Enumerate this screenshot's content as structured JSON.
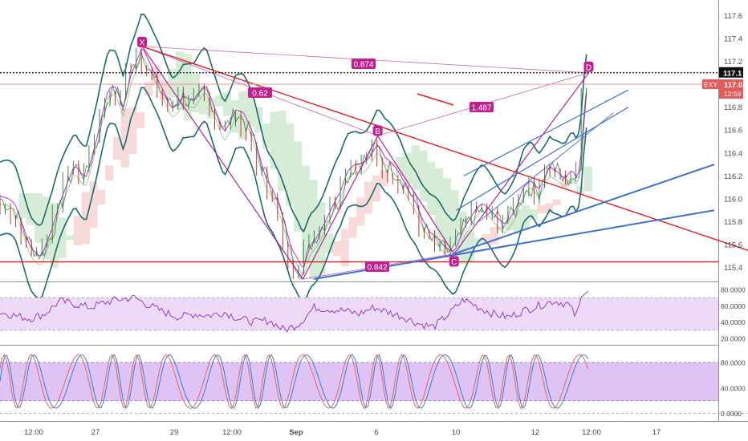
{
  "chart_data": [
    {
      "type": "line",
      "panel": "price",
      "symbol": "EXY",
      "last_price": "117.0",
      "countdown": "12:59",
      "marker_price": "117.1",
      "y_ticks": [
        115.4,
        115.6,
        115.8,
        116.0,
        116.2,
        116.4,
        116.6,
        116.8,
        117.0,
        117.2,
        117.4,
        117.6
      ],
      "ylim": [
        115.3,
        117.7
      ],
      "x_ticks": [
        "12:00",
        "27",
        "29",
        "12:00",
        "Sep",
        "6",
        "10",
        "12",
        "12:00",
        "17"
      ],
      "harmonic_points": [
        {
          "label": "X",
          "t": 0.19,
          "price": 117.33
        },
        {
          "label": "B",
          "t": 0.505,
          "price": 116.55
        },
        {
          "label": "C",
          "t": 0.607,
          "price": 115.52
        },
        {
          "label": "D",
          "t": 0.787,
          "price": 117.1
        }
      ],
      "unlabeled_points": [
        {
          "t": 0.405,
          "price": 115.3
        }
      ],
      "ratios": [
        "0.874",
        "0.62",
        "1.487",
        "0.842"
      ],
      "support_level": 115.45,
      "price_series": [
        [
          0.0,
          116.0
        ],
        [
          0.02,
          115.9
        ],
        [
          0.04,
          115.6
        ],
        [
          0.055,
          115.5
        ],
        [
          0.07,
          115.7
        ],
        [
          0.085,
          116.0
        ],
        [
          0.1,
          116.3
        ],
        [
          0.115,
          116.2
        ],
        [
          0.13,
          116.5
        ],
        [
          0.145,
          116.9
        ],
        [
          0.155,
          116.95
        ],
        [
          0.165,
          116.8
        ],
        [
          0.175,
          117.1
        ],
        [
          0.19,
          117.3
        ],
        [
          0.205,
          117.05
        ],
        [
          0.215,
          116.95
        ],
        [
          0.23,
          116.8
        ],
        [
          0.245,
          116.9
        ],
        [
          0.26,
          116.8
        ],
        [
          0.275,
          116.95
        ],
        [
          0.29,
          116.75
        ],
        [
          0.3,
          116.6
        ],
        [
          0.315,
          116.75
        ],
        [
          0.325,
          116.7
        ],
        [
          0.34,
          116.5
        ],
        [
          0.355,
          116.2
        ],
        [
          0.365,
          116.1
        ],
        [
          0.375,
          115.9
        ],
        [
          0.39,
          115.5
        ],
        [
          0.405,
          115.35
        ],
        [
          0.415,
          115.6
        ],
        [
          0.425,
          115.7
        ],
        [
          0.44,
          115.85
        ],
        [
          0.455,
          116.0
        ],
        [
          0.465,
          116.2
        ],
        [
          0.475,
          116.3
        ],
        [
          0.49,
          116.35
        ],
        [
          0.505,
          116.45
        ],
        [
          0.515,
          116.3
        ],
        [
          0.525,
          116.25
        ],
        [
          0.535,
          116.2
        ],
        [
          0.545,
          116.1
        ],
        [
          0.555,
          116.0
        ],
        [
          0.565,
          115.8
        ],
        [
          0.575,
          115.65
        ],
        [
          0.585,
          115.6
        ],
        [
          0.595,
          115.55
        ],
        [
          0.607,
          115.55
        ],
        [
          0.62,
          115.75
        ],
        [
          0.635,
          115.85
        ],
        [
          0.645,
          115.9
        ],
        [
          0.66,
          115.85
        ],
        [
          0.675,
          115.8
        ],
        [
          0.69,
          115.9
        ],
        [
          0.7,
          116.05
        ],
        [
          0.71,
          116.1
        ],
        [
          0.72,
          116.05
        ],
        [
          0.735,
          116.3
        ],
        [
          0.745,
          116.25
        ],
        [
          0.755,
          116.15
        ],
        [
          0.765,
          116.2
        ],
        [
          0.772,
          116.1
        ],
        [
          0.778,
          116.4
        ],
        [
          0.782,
          116.85
        ],
        [
          0.787,
          117.05
        ]
      ]
    },
    {
      "type": "line",
      "panel": "rsi",
      "y_ticks": [
        "80.0000",
        "60.0000",
        "40.0000",
        "20.0000"
      ],
      "ylim": [
        15,
        85
      ],
      "upper_band": 70,
      "lower_band": 30,
      "series": [
        [
          0.0,
          52
        ],
        [
          0.02,
          48
        ],
        [
          0.04,
          44
        ],
        [
          0.06,
          50
        ],
        [
          0.08,
          66
        ],
        [
          0.1,
          62
        ],
        [
          0.12,
          58
        ],
        [
          0.14,
          64
        ],
        [
          0.16,
          68
        ],
        [
          0.18,
          70
        ],
        [
          0.2,
          60
        ],
        [
          0.22,
          52
        ],
        [
          0.24,
          46
        ],
        [
          0.26,
          50
        ],
        [
          0.28,
          48
        ],
        [
          0.3,
          52
        ],
        [
          0.32,
          44
        ],
        [
          0.34,
          40
        ],
        [
          0.36,
          42
        ],
        [
          0.38,
          30
        ],
        [
          0.4,
          38
        ],
        [
          0.42,
          58
        ],
        [
          0.44,
          56
        ],
        [
          0.46,
          54
        ],
        [
          0.48,
          50
        ],
        [
          0.5,
          58
        ],
        [
          0.52,
          52
        ],
        [
          0.54,
          46
        ],
        [
          0.56,
          38
        ],
        [
          0.58,
          34
        ],
        [
          0.6,
          50
        ],
        [
          0.62,
          68
        ],
        [
          0.64,
          58
        ],
        [
          0.66,
          50
        ],
        [
          0.68,
          46
        ],
        [
          0.7,
          54
        ],
        [
          0.72,
          60
        ],
        [
          0.74,
          66
        ],
        [
          0.76,
          62
        ],
        [
          0.77,
          46
        ],
        [
          0.78,
          78
        ],
        [
          0.787,
          80
        ]
      ]
    },
    {
      "type": "line",
      "panel": "stoch",
      "y_ticks": [
        "80.0000",
        "40.0000",
        "0.0000"
      ],
      "ylim": [
        -8,
        100
      ],
      "upper_band": 80,
      "lower_band": 20,
      "series": [
        {
          "name": "",
          "color": "#3a7bd5"
        },
        {
          "name": "",
          "color": "#e06a5a"
        }
      ]
    }
  ],
  "colors": {
    "background": "#ffffff",
    "price_line": "#2e5e3a",
    "bollinger": "#1a6b6b",
    "ma": "#c62bd6",
    "cloud_green": "#cfe9cf",
    "cloud_red": "#f6d3d3",
    "harmonic": "#b0249a",
    "red_line": "#e21d1d",
    "blue_line": "#3c6fcf",
    "label_bg": "#c0208f",
    "rsi_line": "#9b3dbf",
    "rsi_band": "#ecdaf7",
    "stoch_band": "#e0c3f5",
    "price_tag": "#e35a5a"
  }
}
